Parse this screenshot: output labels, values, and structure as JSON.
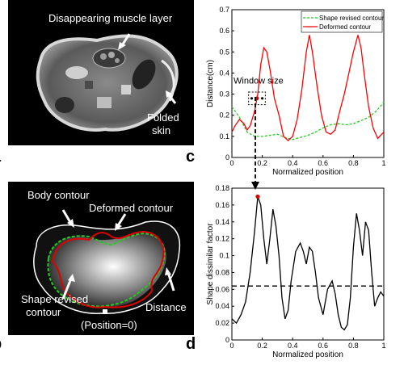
{
  "panel_labels": {
    "a": "a",
    "b": "b",
    "c": "c",
    "d": "d"
  },
  "panel_a": {
    "annotations": [
      "Disappearing muscle layer",
      "Folded skin"
    ]
  },
  "panel_b": {
    "annotations": [
      "Body contour",
      "Deformed contour",
      "Shape revised contour",
      "Distance",
      "(Position=0)"
    ]
  },
  "chart_data": [
    {
      "type": "line",
      "panel": "c",
      "xlabel": "Normalized position",
      "ylabel": "Distance(cm)",
      "xlim": [
        0,
        1
      ],
      "ylim": [
        0,
        0.7
      ],
      "xticks": [
        0,
        0.2,
        0.4,
        0.6,
        0.8,
        1
      ],
      "yticks": [
        0,
        0.1,
        0.2,
        0.3,
        0.4,
        0.5,
        0.6,
        0.7
      ],
      "legend_position": "top-right",
      "annotation": "Window size",
      "series": [
        {
          "name": "Shape revised contour",
          "color": "#22cc22",
          "style": "dashed",
          "x": [
            0.0,
            0.05,
            0.1,
            0.15,
            0.2,
            0.25,
            0.3,
            0.35,
            0.4,
            0.45,
            0.5,
            0.55,
            0.6,
            0.65,
            0.7,
            0.75,
            0.8,
            0.85,
            0.9,
            0.95,
            1.0
          ],
          "y": [
            0.24,
            0.19,
            0.12,
            0.1,
            0.1,
            0.105,
            0.11,
            0.095,
            0.085,
            0.095,
            0.105,
            0.12,
            0.14,
            0.155,
            0.16,
            0.155,
            0.16,
            0.175,
            0.19,
            0.22,
            0.26
          ]
        },
        {
          "name": "Deformed contour",
          "color": "#ff0000",
          "style": "solid",
          "x": [
            0.0,
            0.02,
            0.05,
            0.08,
            0.1,
            0.12,
            0.15,
            0.17,
            0.19,
            0.21,
            0.23,
            0.25,
            0.28,
            0.31,
            0.34,
            0.37,
            0.4,
            0.43,
            0.46,
            0.49,
            0.51,
            0.53,
            0.56,
            0.59,
            0.62,
            0.65,
            0.68,
            0.71,
            0.74,
            0.77,
            0.8,
            0.83,
            0.85,
            0.87,
            0.9,
            0.93,
            0.96,
            1.0
          ],
          "y": [
            0.12,
            0.15,
            0.18,
            0.16,
            0.13,
            0.15,
            0.22,
            0.3,
            0.44,
            0.52,
            0.5,
            0.42,
            0.28,
            0.2,
            0.1,
            0.08,
            0.1,
            0.18,
            0.32,
            0.5,
            0.58,
            0.5,
            0.34,
            0.2,
            0.12,
            0.11,
            0.13,
            0.22,
            0.3,
            0.4,
            0.5,
            0.58,
            0.52,
            0.4,
            0.24,
            0.14,
            0.09,
            0.12
          ]
        }
      ]
    },
    {
      "type": "line",
      "panel": "d",
      "xlabel": "Normalized position",
      "ylabel": "Shape dissimilar factor",
      "xlim": [
        0,
        1
      ],
      "ylim": [
        0,
        0.18
      ],
      "xticks": [
        0,
        0.2,
        0.4,
        0.6,
        0.8,
        1
      ],
      "yticks": [
        0,
        0.02,
        0.04,
        0.06,
        0.08,
        0.1,
        0.12,
        0.14,
        0.16,
        0.18
      ],
      "threshold": 0.064,
      "series": [
        {
          "name": "",
          "color": "#000000",
          "style": "solid",
          "x": [
            0.0,
            0.03,
            0.06,
            0.09,
            0.12,
            0.15,
            0.17,
            0.19,
            0.21,
            0.23,
            0.25,
            0.27,
            0.29,
            0.31,
            0.33,
            0.35,
            0.37,
            0.39,
            0.42,
            0.45,
            0.47,
            0.49,
            0.51,
            0.53,
            0.55,
            0.57,
            0.6,
            0.63,
            0.66,
            0.68,
            0.7,
            0.72,
            0.74,
            0.76,
            0.78,
            0.8,
            0.82,
            0.84,
            0.86,
            0.88,
            0.9,
            0.92,
            0.94,
            0.96,
            0.98,
            1.0
          ],
          "y": [
            0.025,
            0.02,
            0.03,
            0.045,
            0.08,
            0.13,
            0.17,
            0.16,
            0.12,
            0.09,
            0.12,
            0.155,
            0.135,
            0.1,
            0.05,
            0.025,
            0.035,
            0.07,
            0.105,
            0.115,
            0.105,
            0.09,
            0.11,
            0.105,
            0.08,
            0.05,
            0.03,
            0.06,
            0.07,
            0.055,
            0.03,
            0.015,
            0.012,
            0.018,
            0.05,
            0.11,
            0.15,
            0.13,
            0.1,
            0.14,
            0.13,
            0.08,
            0.04,
            0.05,
            0.057,
            0.052
          ]
        }
      ]
    }
  ]
}
